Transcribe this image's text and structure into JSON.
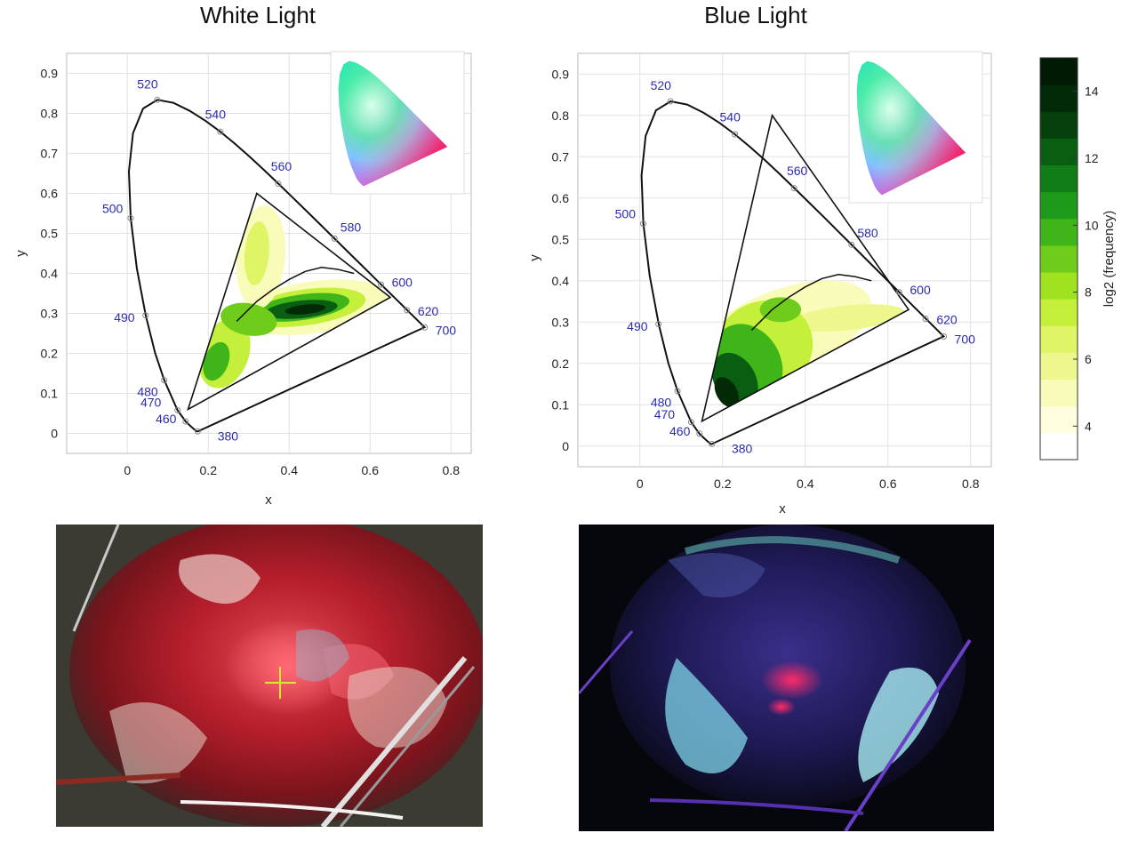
{
  "chart_data": [
    {
      "type": "scatter",
      "title": "White Light",
      "xlabel": "x",
      "ylabel": "y",
      "xlim": [
        -0.15,
        0.85
      ],
      "ylim": [
        -0.05,
        0.95
      ],
      "xticks": [
        "0",
        "0.2",
        "0.4",
        "0.6",
        "0.8"
      ],
      "yticks": [
        "0",
        "0.1",
        "0.2",
        "0.3",
        "0.4",
        "0.5",
        "0.6",
        "0.7",
        "0.8",
        "0.9"
      ],
      "grid": true,
      "spectral_locus_labels": [
        {
          "label": "520",
          "x": 0.074,
          "y": 0.834
        },
        {
          "label": "540",
          "x": 0.23,
          "y": 0.754
        },
        {
          "label": "560",
          "x": 0.373,
          "y": 0.624
        },
        {
          "label": "580",
          "x": 0.512,
          "y": 0.487
        },
        {
          "label": "600",
          "x": 0.627,
          "y": 0.372
        },
        {
          "label": "620",
          "x": 0.691,
          "y": 0.308
        },
        {
          "label": "700",
          "x": 0.735,
          "y": 0.265
        },
        {
          "label": "500",
          "x": 0.008,
          "y": 0.538
        },
        {
          "label": "490",
          "x": 0.045,
          "y": 0.295
        },
        {
          "label": "480",
          "x": 0.091,
          "y": 0.133
        },
        {
          "label": "470",
          "x": 0.124,
          "y": 0.058
        },
        {
          "label": "460",
          "x": 0.144,
          "y": 0.03
        },
        {
          "label": "380",
          "x": 0.174,
          "y": 0.005
        }
      ],
      "gamut_triangle": [
        [
          0.32,
          0.6
        ],
        [
          0.65,
          0.34
        ],
        [
          0.15,
          0.06
        ]
      ],
      "density_peak": {
        "x": 0.46,
        "y": 0.31
      }
    },
    {
      "type": "scatter",
      "title": "Blue Light",
      "xlabel": "x",
      "ylabel": "y",
      "xlim": [
        -0.15,
        0.85
      ],
      "ylim": [
        -0.05,
        0.95
      ],
      "xticks": [
        "0",
        "0.2",
        "0.4",
        "0.6",
        "0.8"
      ],
      "yticks": [
        "0",
        "0.1",
        "0.2",
        "0.3",
        "0.4",
        "0.5",
        "0.6",
        "0.7",
        "0.8",
        "0.9"
      ],
      "grid": true,
      "spectral_locus_labels": [
        {
          "label": "520",
          "x": 0.074,
          "y": 0.834
        },
        {
          "label": "540",
          "x": 0.23,
          "y": 0.754
        },
        {
          "label": "560",
          "x": 0.373,
          "y": 0.624
        },
        {
          "label": "580",
          "x": 0.512,
          "y": 0.487
        },
        {
          "label": "600",
          "x": 0.627,
          "y": 0.372
        },
        {
          "label": "620",
          "x": 0.691,
          "y": 0.308
        },
        {
          "label": "700",
          "x": 0.735,
          "y": 0.265
        },
        {
          "label": "500",
          "x": 0.008,
          "y": 0.538
        },
        {
          "label": "490",
          "x": 0.045,
          "y": 0.295
        },
        {
          "label": "480",
          "x": 0.091,
          "y": 0.133
        },
        {
          "label": "470",
          "x": 0.124,
          "y": 0.058
        },
        {
          "label": "460",
          "x": 0.144,
          "y": 0.03
        },
        {
          "label": "380",
          "x": 0.174,
          "y": 0.005
        }
      ],
      "gamut_triangle": [
        [
          0.32,
          0.8
        ],
        [
          0.65,
          0.33
        ],
        [
          0.15,
          0.06
        ]
      ],
      "density_peak": {
        "x": 0.22,
        "y": 0.14
      }
    }
  ],
  "colorbar": {
    "label": "log2 (frequency)",
    "range": [
      3,
      15
    ],
    "ticks": [
      "4",
      "6",
      "8",
      "10",
      "12",
      "14"
    ]
  },
  "photos": [
    {
      "name": "surgical-field-white-light"
    },
    {
      "name": "surgical-field-blue-light"
    }
  ]
}
